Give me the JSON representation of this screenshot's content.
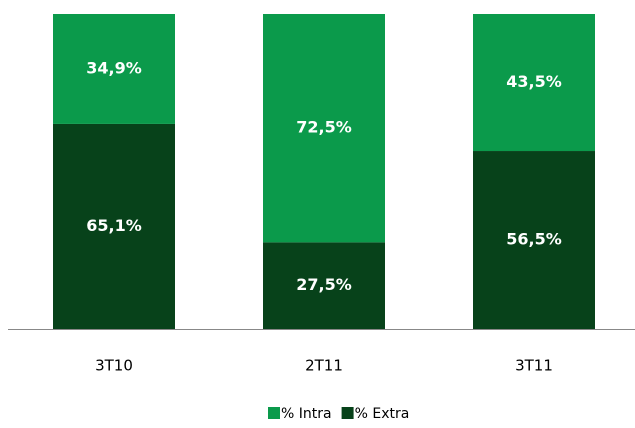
{
  "chart_data": {
    "type": "bar",
    "stacked": true,
    "categories": [
      "3T10",
      "2T11",
      "3T11"
    ],
    "series": [
      {
        "name": "% Intra",
        "color": "#0b9a4b",
        "values": [
          34.9,
          72.5,
          43.5
        ],
        "value_labels": [
          "34,9%",
          "72,5%",
          "43,5%"
        ]
      },
      {
        "name": "% Extra",
        "color": "#07421a",
        "values": [
          65.1,
          27.5,
          56.5
        ],
        "value_labels": [
          "65,1%",
          "27,5%",
          "56,5%"
        ]
      }
    ],
    "ylim": [
      0,
      100
    ]
  }
}
